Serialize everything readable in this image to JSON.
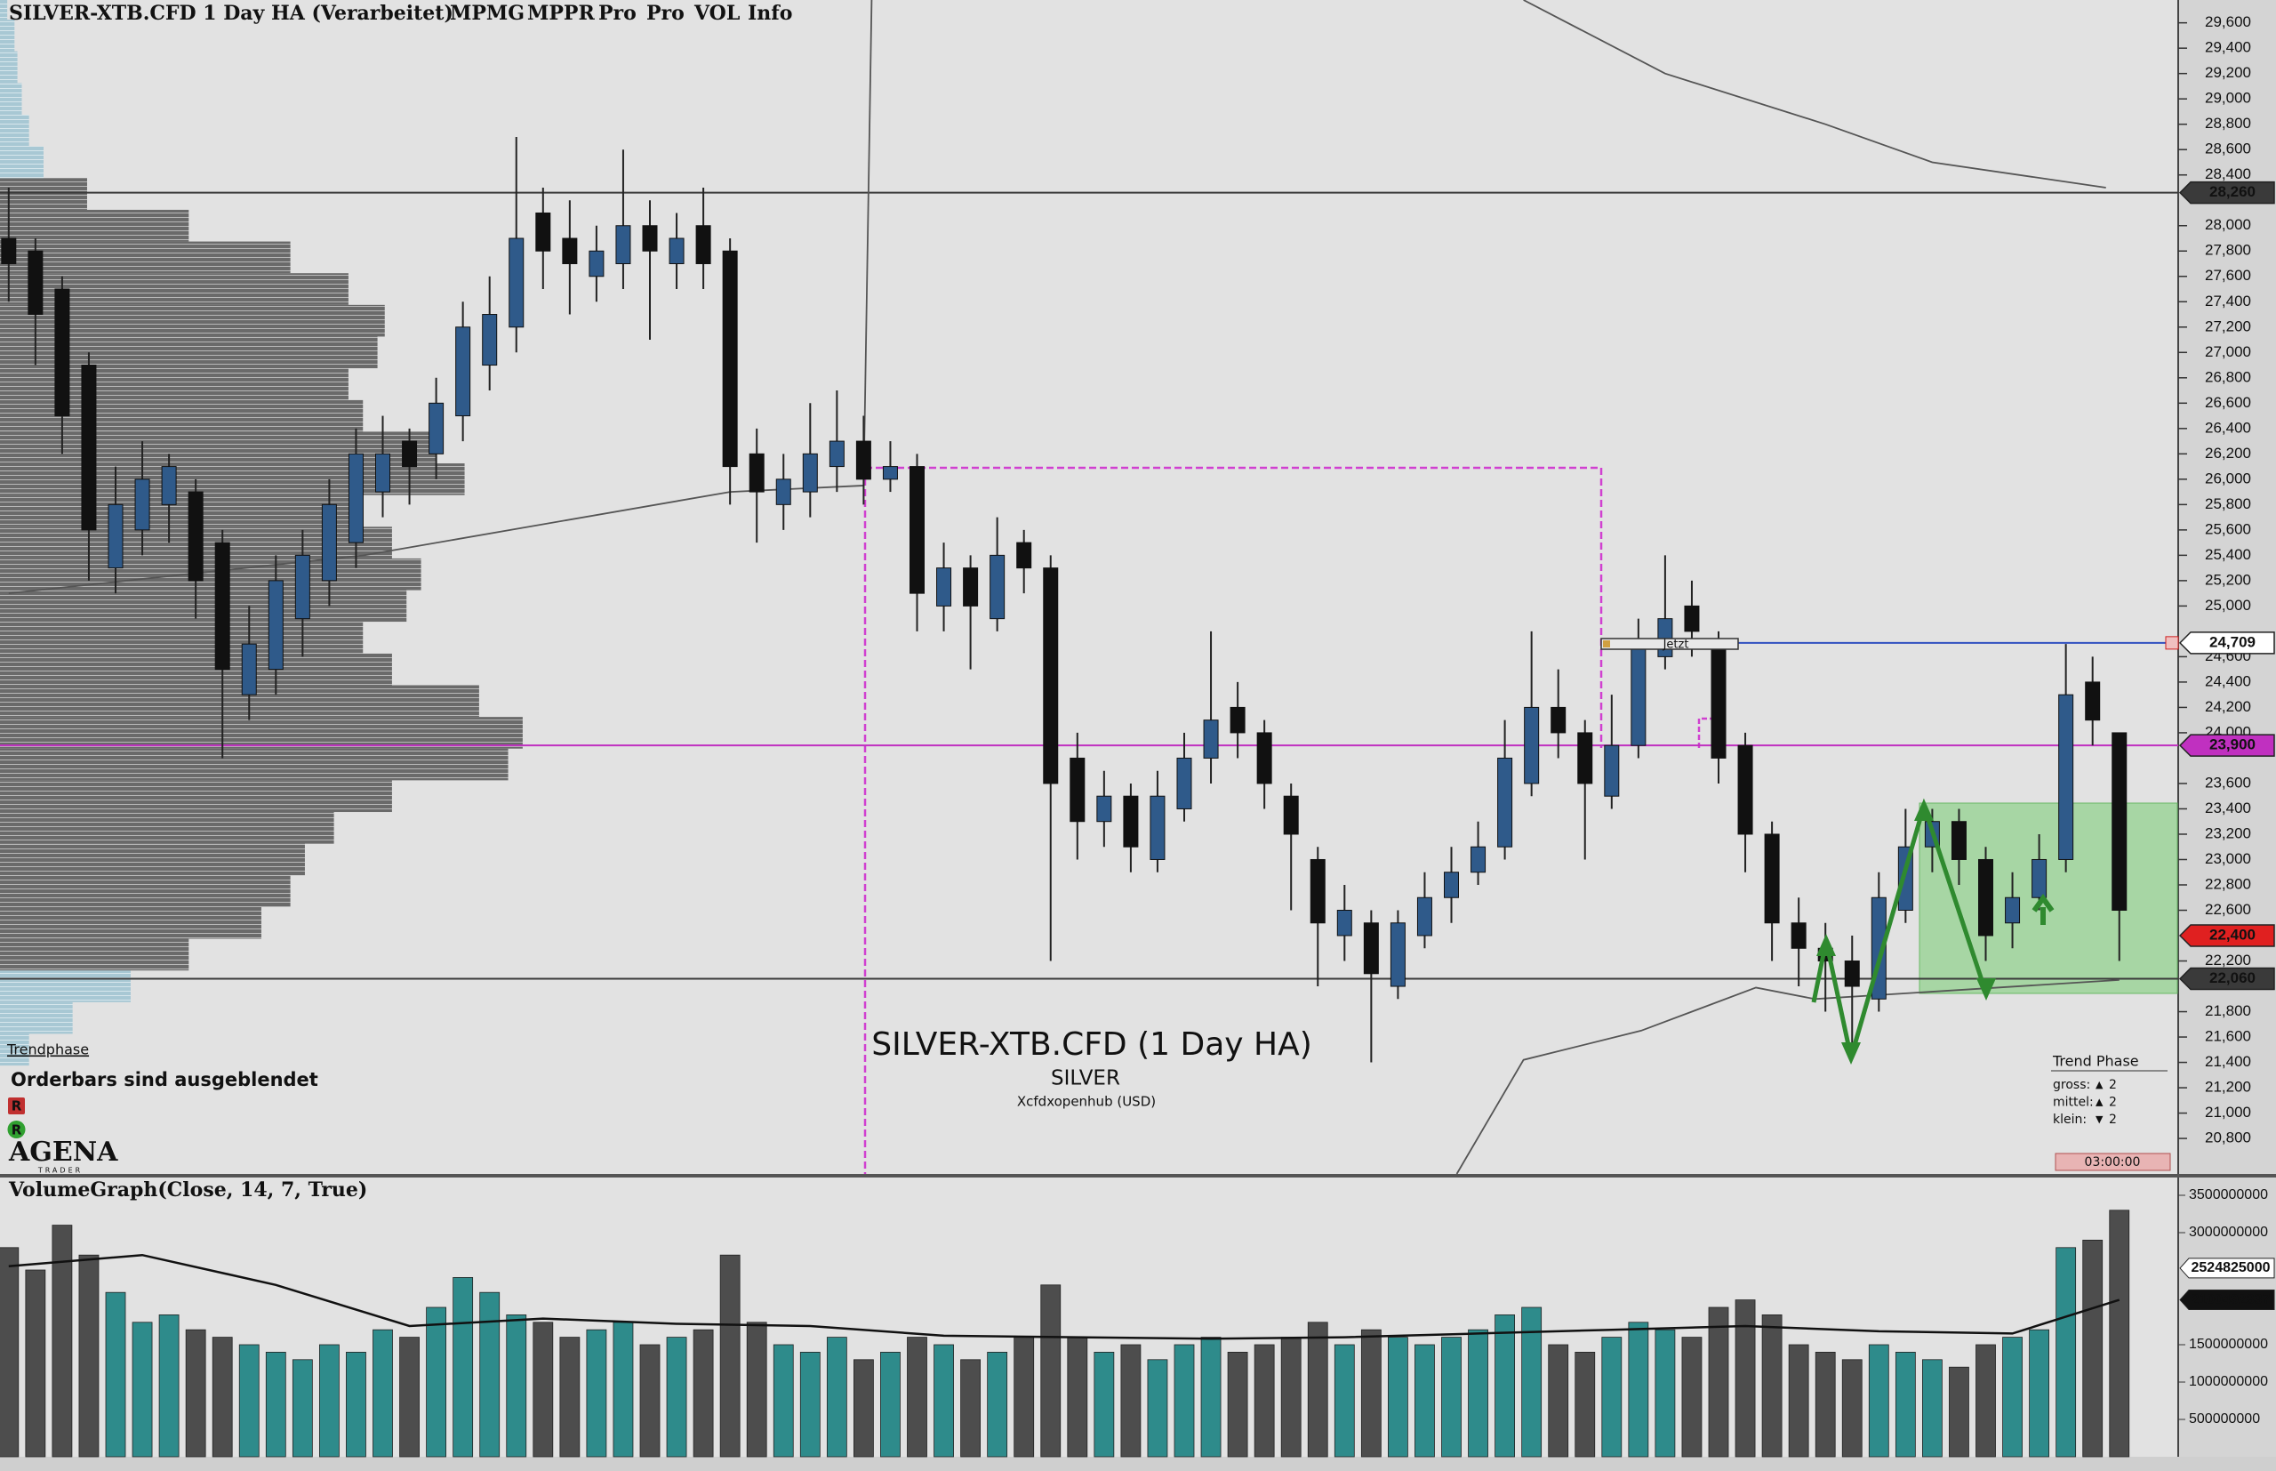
{
  "header": {
    "title": "SILVER-XTB.CFD 1 Day HA (Verarbeitet)",
    "buttons": [
      {
        "label": "MPMG",
        "color": "#f0a040"
      },
      {
        "label": "MPPR",
        "color": "#f0a040"
      },
      {
        "label": "Pro",
        "color": "#e03030"
      },
      {
        "label": "Pro",
        "color": "#5cd65c"
      },
      {
        "label": "VOL",
        "color": "#333333"
      },
      {
        "label": "Info",
        "color": "#111111"
      }
    ]
  },
  "watermark": {
    "title": "SILVER-XTB.CFD (1 Day HA)",
    "symbol": "SILVER",
    "source": "Xcfdxopenhub  (USD)"
  },
  "overlay": {
    "trendphase_label": "Trendphase",
    "orderbars_note": "Orderbars sind ausgeblendet",
    "badges": [
      {
        "label": "R",
        "color": "#c03030"
      },
      {
        "label": "R",
        "color": "#30a030"
      }
    ],
    "logo": "AGENA",
    "logo_sub": "TRADER",
    "now_label": "Jetzt",
    "timer": "03:00:00",
    "trend_phase": {
      "title": "Trend Phase",
      "rows": [
        {
          "label": "gross:",
          "arrow": "▲",
          "arrow_color": "#2a8a2a",
          "value": 2
        },
        {
          "label": "mittel:",
          "arrow": "▲",
          "arrow_color": "#2a8a2a",
          "value": 2
        },
        {
          "label": "klein:",
          "arrow": "▼",
          "arrow_color": "#d02020",
          "value": 2
        }
      ]
    }
  },
  "chart_data": [
    {
      "type": "candlestick",
      "up_color": "#2f5a8a",
      "down_color": "#111111",
      "candles": [
        [
          27.9,
          28.3,
          27.4,
          27.7
        ],
        [
          27.8,
          27.9,
          26.9,
          27.3
        ],
        [
          27.5,
          27.6,
          26.2,
          26.5
        ],
        [
          26.9,
          27.0,
          25.2,
          25.6
        ],
        [
          25.3,
          26.1,
          25.1,
          25.8
        ],
        [
          25.6,
          26.3,
          25.4,
          26.0
        ],
        [
          25.8,
          26.2,
          25.5,
          26.1
        ],
        [
          25.9,
          26.0,
          24.9,
          25.2
        ],
        [
          25.5,
          25.6,
          23.8,
          24.5
        ],
        [
          24.3,
          25.0,
          24.1,
          24.7
        ],
        [
          24.5,
          25.4,
          24.3,
          25.2
        ],
        [
          24.9,
          25.6,
          24.6,
          25.4
        ],
        [
          25.2,
          26.0,
          25.0,
          25.8
        ],
        [
          25.5,
          26.4,
          25.3,
          26.2
        ],
        [
          25.9,
          26.5,
          25.7,
          26.2
        ],
        [
          26.3,
          26.4,
          25.8,
          26.1
        ],
        [
          26.2,
          26.8,
          26.0,
          26.6
        ],
        [
          26.5,
          27.4,
          26.3,
          27.2
        ],
        [
          26.9,
          27.6,
          26.7,
          27.3
        ],
        [
          27.2,
          28.7,
          27.0,
          27.9
        ],
        [
          28.1,
          28.3,
          27.5,
          27.8
        ],
        [
          27.9,
          28.2,
          27.3,
          27.7
        ],
        [
          27.6,
          28.0,
          27.4,
          27.8
        ],
        [
          27.7,
          28.6,
          27.5,
          28.0
        ],
        [
          28.0,
          28.2,
          27.1,
          27.8
        ],
        [
          27.7,
          28.1,
          27.5,
          27.9
        ],
        [
          28.0,
          28.3,
          27.5,
          27.7
        ],
        [
          27.8,
          27.9,
          25.8,
          26.1
        ],
        [
          26.2,
          26.4,
          25.5,
          25.9
        ],
        [
          25.8,
          26.2,
          25.6,
          26.0
        ],
        [
          25.9,
          26.6,
          25.7,
          26.2
        ],
        [
          26.1,
          26.7,
          25.9,
          26.3
        ],
        [
          26.3,
          26.5,
          25.8,
          26.0
        ],
        [
          26.0,
          26.3,
          25.9,
          26.1
        ],
        [
          26.1,
          26.2,
          24.8,
          25.1
        ],
        [
          25.0,
          25.5,
          24.8,
          25.3
        ],
        [
          25.3,
          25.4,
          24.5,
          25.0
        ],
        [
          24.9,
          25.7,
          24.8,
          25.4
        ],
        [
          25.5,
          25.6,
          25.1,
          25.3
        ],
        [
          25.3,
          25.4,
          22.2,
          23.6
        ],
        [
          23.8,
          24.0,
          23.0,
          23.3
        ],
        [
          23.3,
          23.7,
          23.1,
          23.5
        ],
        [
          23.5,
          23.6,
          22.9,
          23.1
        ],
        [
          23.0,
          23.7,
          22.9,
          23.5
        ],
        [
          23.4,
          24.0,
          23.3,
          23.8
        ],
        [
          23.8,
          24.8,
          23.6,
          24.1
        ],
        [
          24.2,
          24.4,
          23.8,
          24.0
        ],
        [
          24.0,
          24.1,
          23.4,
          23.6
        ],
        [
          23.5,
          23.6,
          22.6,
          23.2
        ],
        [
          23.0,
          23.1,
          22.0,
          22.5
        ],
        [
          22.4,
          22.8,
          22.2,
          22.6
        ],
        [
          22.5,
          22.6,
          21.4,
          22.1
        ],
        [
          22.0,
          22.6,
          21.9,
          22.5
        ],
        [
          22.4,
          22.9,
          22.3,
          22.7
        ],
        [
          22.7,
          23.1,
          22.5,
          22.9
        ],
        [
          22.9,
          23.3,
          22.8,
          23.1
        ],
        [
          23.1,
          24.1,
          23.0,
          23.8
        ],
        [
          23.6,
          24.8,
          23.5,
          24.2
        ],
        [
          24.2,
          24.5,
          23.8,
          24.0
        ],
        [
          24.0,
          24.1,
          23.0,
          23.6
        ],
        [
          23.5,
          24.3,
          23.4,
          23.9
        ],
        [
          23.9,
          24.9,
          23.8,
          24.7
        ],
        [
          24.6,
          25.4,
          24.5,
          24.9
        ],
        [
          25.0,
          25.2,
          24.6,
          24.8
        ],
        [
          24.7,
          24.8,
          23.6,
          23.8
        ],
        [
          23.9,
          24.0,
          22.9,
          23.2
        ],
        [
          23.2,
          23.3,
          22.2,
          22.5
        ],
        [
          22.5,
          22.7,
          22.0,
          22.3
        ],
        [
          22.3,
          22.5,
          21.8,
          22.2
        ],
        [
          22.2,
          22.4,
          21.5,
          22.0
        ],
        [
          21.9,
          22.9,
          21.8,
          22.7
        ],
        [
          22.6,
          23.4,
          22.5,
          23.1
        ],
        [
          23.1,
          23.4,
          22.9,
          23.3
        ],
        [
          23.3,
          23.4,
          22.8,
          23.0
        ],
        [
          23.0,
          23.1,
          22.2,
          22.4
        ],
        [
          22.5,
          22.9,
          22.3,
          22.7
        ],
        [
          22.7,
          23.2,
          22.6,
          23.0
        ],
        [
          23.0,
          24.7,
          22.9,
          24.3
        ],
        [
          24.4,
          24.6,
          23.9,
          24.1
        ],
        [
          24.0,
          24.0,
          22.2,
          22.6
        ]
      ],
      "ylim": [
        20.52,
        29.78
      ],
      "yticks": [
        {
          "value": 20.8,
          "label": "20,800"
        },
        {
          "value": 21.0,
          "label": "21,000"
        },
        {
          "value": 21.2,
          "label": "21,200"
        },
        {
          "value": 21.4,
          "label": "21,400"
        },
        {
          "value": 21.6,
          "label": "21,600"
        },
        {
          "value": 21.8,
          "label": "21,800"
        },
        {
          "value": 22.2,
          "label": "22,200"
        },
        {
          "value": 22.6,
          "label": "22,600"
        },
        {
          "value": 22.8,
          "label": "22,800"
        },
        {
          "value": 23.0,
          "label": "23,000"
        },
        {
          "value": 23.2,
          "label": "23,200"
        },
        {
          "value": 23.4,
          "label": "23,400"
        },
        {
          "value": 23.6,
          "label": "23,600"
        },
        {
          "value": 24.0,
          "label": "24,000"
        },
        {
          "value": 24.2,
          "label": "24,200"
        },
        {
          "value": 24.4,
          "label": "24,400"
        },
        {
          "value": 24.6,
          "label": "24,600"
        },
        {
          "value": 25.0,
          "label": "25,000"
        },
        {
          "value": 25.2,
          "label": "25,200"
        },
        {
          "value": 25.4,
          "label": "25,400"
        },
        {
          "value": 25.6,
          "label": "25,600"
        },
        {
          "value": 25.8,
          "label": "25,800"
        },
        {
          "value": 26.0,
          "label": "26,000"
        },
        {
          "value": 26.2,
          "label": "26,200"
        },
        {
          "value": 26.4,
          "label": "26,400"
        },
        {
          "value": 26.6,
          "label": "26,600"
        },
        {
          "value": 26.8,
          "label": "26,800"
        },
        {
          "value": 27.0,
          "label": "27,000"
        },
        {
          "value": 27.2,
          "label": "27,200"
        },
        {
          "value": 27.4,
          "label": "27,400"
        },
        {
          "value": 27.6,
          "label": "27,600"
        },
        {
          "value": 27.8,
          "label": "27,800"
        },
        {
          "value": 28.0,
          "label": "28,000"
        },
        {
          "value": 28.4,
          "label": "28,400"
        },
        {
          "value": 28.6,
          "label": "28,600"
        },
        {
          "value": 28.8,
          "label": "28,800"
        },
        {
          "value": 29.0,
          "label": "29,000"
        },
        {
          "value": 29.2,
          "label": "29,200"
        },
        {
          "value": 29.4,
          "label": "29,400"
        },
        {
          "value": 29.6,
          "label": "29,600"
        }
      ],
      "price_lines": [
        {
          "value": 28.26,
          "label": "28,260",
          "color": "#3a3a3a",
          "text_color": "#ffffff",
          "line": "full"
        },
        {
          "value": 24.709,
          "label": "24,709",
          "color": "#ffffff",
          "text_color": "#111111",
          "line": "right"
        },
        {
          "value": 23.9,
          "label": "23,900",
          "color": "#c030c0",
          "text_color": "#ffffff",
          "line": "full"
        },
        {
          "value": 22.4,
          "label": "22,400",
          "color": "#e02020",
          "text_color": "#ffffff",
          "line": "none"
        },
        {
          "value": 22.06,
          "label": "22,060",
          "color": "#3a3a3a",
          "text_color": "#ffffff",
          "line": "full"
        }
      ],
      "profile": {
        "levels": [
          21.5,
          21.75,
          22.0,
          22.25,
          22.5,
          22.75,
          23.0,
          23.25,
          23.5,
          23.75,
          24.0,
          24.25,
          24.5,
          24.75,
          25.0,
          25.25,
          25.5,
          25.75,
          26.0,
          26.25,
          26.5,
          26.75,
          27.0,
          27.25,
          27.5,
          27.75,
          28.0,
          28.25,
          28.5,
          28.75,
          29.0,
          29.25,
          29.5,
          29.75
        ],
        "values": [
          20,
          50,
          90,
          130,
          180,
          200,
          210,
          230,
          270,
          350,
          360,
          330,
          270,
          250,
          280,
          290,
          270,
          250,
          320,
          300,
          250,
          240,
          260,
          265,
          240,
          200,
          130,
          60,
          30,
          20,
          15,
          12,
          10,
          5
        ]
      },
      "lines": [
        {
          "x": [
            0,
            13.3,
            27,
            32,
            32.3
          ],
          "values": [
            25.1,
            25.4,
            25.9,
            25.95,
            29.78
          ]
        },
        {
          "x": [
            56.7,
            62,
            68,
            72,
            78.5
          ],
          "values": [
            29.78,
            29.2,
            28.8,
            28.5,
            28.3
          ]
        },
        {
          "x": [
            54.2,
            56.7,
            61.1,
            65.4,
            67.6,
            79
          ],
          "values": [
            20.52,
            21.42,
            21.65,
            21.99,
            21.9,
            22.05
          ]
        }
      ]
    },
    {
      "type": "bar",
      "title": "VolumeGraph(Close, 14, 7, True)",
      "up_color": "#2e8b8b",
      "down_color": "#4d4d4d",
      "values": [
        2800000000,
        2500000000,
        3100000000,
        2700000000,
        2200000000,
        1800000000,
        1900000000,
        1700000000,
        1600000000,
        1500000000,
        1400000000,
        1300000000,
        1500000000,
        1400000000,
        1700000000,
        1600000000,
        2000000000,
        2400000000,
        2200000000,
        1900000000,
        1800000000,
        1600000000,
        1700000000,
        1800000000,
        1500000000,
        1600000000,
        1700000000,
        2700000000,
        1800000000,
        1500000000,
        1400000000,
        1600000000,
        1300000000,
        1400000000,
        1600000000,
        1500000000,
        1300000000,
        1400000000,
        1600000000,
        2300000000,
        1600000000,
        1400000000,
        1500000000,
        1300000000,
        1500000000,
        1600000000,
        1400000000,
        1500000000,
        1600000000,
        1800000000,
        1500000000,
        1700000000,
        1600000000,
        1500000000,
        1600000000,
        1700000000,
        1900000000,
        2000000000,
        1500000000,
        1400000000,
        1600000000,
        1800000000,
        1700000000,
        1600000000,
        2000000000,
        2100000000,
        1900000000,
        1500000000,
        1400000000,
        1300000000,
        1500000000,
        1400000000,
        1300000000,
        1200000000,
        1500000000,
        1600000000,
        1700000000,
        2800000000,
        2900000000,
        3300000000
      ],
      "ylim": [
        0,
        3750000000
      ],
      "yticks": [
        500000000,
        1000000000,
        1500000000,
        3000000000,
        3500000000
      ],
      "price_lines": [
        {
          "value": 2524825000,
          "color": "#ffffff",
          "text_color": "#111111"
        },
        {
          "value": 2100492837,
          "color": "#111111",
          "text_color": "#ffffff"
        }
      ],
      "ma": {
        "x": [
          0,
          5,
          10,
          15,
          20,
          25,
          30,
          35,
          40,
          45,
          50,
          55,
          60,
          65,
          70,
          75,
          79
        ],
        "values": [
          2550000000,
          2700000000,
          2300000000,
          1750000000,
          1850000000,
          1780000000,
          1750000000,
          1620000000,
          1600000000,
          1580000000,
          1600000000,
          1650000000,
          1700000000,
          1750000000,
          1680000000,
          1650000000,
          2100000000
        ]
      }
    }
  ]
}
